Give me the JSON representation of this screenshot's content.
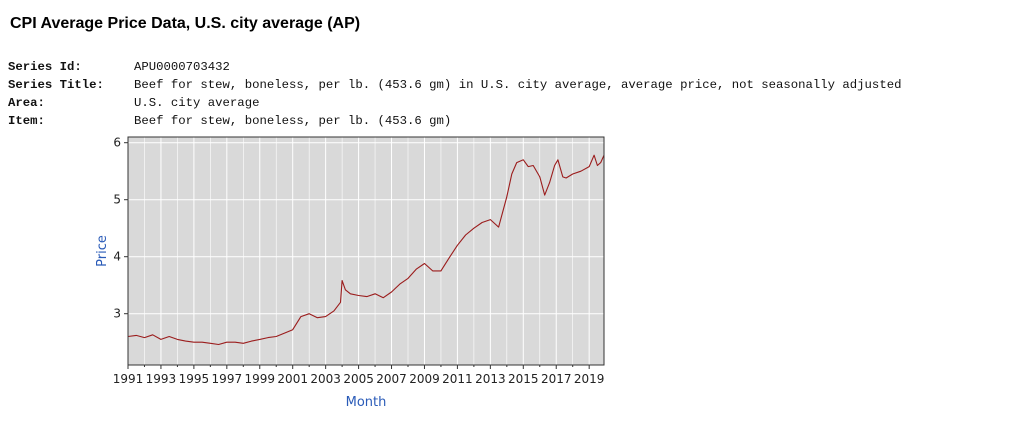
{
  "page": {
    "title": "CPI Average Price Data, U.S. city average (AP)"
  },
  "meta": [
    {
      "label": "Series Id:",
      "value": "APU0000703432"
    },
    {
      "label": "Series Title:",
      "value": "Beef for stew, boneless, per lb. (453.6 gm) in U.S. city average, average price, not seasonally adjusted"
    },
    {
      "label": "Area:",
      "value": "U.S. city average"
    },
    {
      "label": "Item:",
      "value": "Beef for stew, boneless, per lb. (453.6 gm)"
    }
  ],
  "colors": {
    "line": "#9b1c1c",
    "plot_background": "#d9d9d9",
    "grid": "#ffffff",
    "axis_title": "#2a5bb8"
  },
  "chart_data": {
    "type": "line",
    "title": "",
    "xlabel": "Month",
    "ylabel": "Price",
    "xlim": [
      1991.0,
      2019.9
    ],
    "ylim": [
      2.1,
      6.1
    ],
    "grid": true,
    "x_ticks": [
      "1991",
      "1993",
      "1995",
      "1997",
      "1999",
      "2001",
      "2003",
      "2005",
      "2007",
      "2009",
      "2011",
      "2013",
      "2015",
      "2017",
      "2019"
    ],
    "y_ticks": [
      "3",
      "4",
      "5",
      "6"
    ],
    "series": [
      {
        "name": "",
        "x": [
          1991.0,
          1991.5,
          1992.0,
          1992.5,
          1993.0,
          1993.5,
          1994.0,
          1994.5,
          1995.0,
          1995.5,
          1996.0,
          1996.5,
          1997.0,
          1997.5,
          1998.0,
          1998.5,
          1999.0,
          1999.5,
          2000.0,
          2000.5,
          2001.0,
          2001.5,
          2002.0,
          2002.5,
          2003.0,
          2003.5,
          2003.9,
          2004.0,
          2004.2,
          2004.5,
          2005.0,
          2005.5,
          2006.0,
          2006.5,
          2007.0,
          2007.5,
          2008.0,
          2008.5,
          2009.0,
          2009.5,
          2010.0,
          2010.5,
          2011.0,
          2011.5,
          2012.0,
          2012.5,
          2013.0,
          2013.5,
          2014.0,
          2014.3,
          2014.6,
          2015.0,
          2015.3,
          2015.6,
          2016.0,
          2016.3,
          2016.6,
          2016.9,
          2017.1,
          2017.4,
          2017.6,
          2018.0,
          2018.5,
          2019.0,
          2019.3,
          2019.5,
          2019.7,
          2019.9
        ],
        "y": [
          2.6,
          2.62,
          2.58,
          2.63,
          2.55,
          2.6,
          2.55,
          2.52,
          2.5,
          2.5,
          2.48,
          2.46,
          2.5,
          2.5,
          2.48,
          2.52,
          2.55,
          2.58,
          2.6,
          2.66,
          2.72,
          2.95,
          3.0,
          2.93,
          2.95,
          3.05,
          3.2,
          3.58,
          3.42,
          3.35,
          3.32,
          3.3,
          3.35,
          3.28,
          3.38,
          3.52,
          3.62,
          3.78,
          3.88,
          3.75,
          3.75,
          3.98,
          4.2,
          4.38,
          4.5,
          4.6,
          4.65,
          4.52,
          5.05,
          5.45,
          5.65,
          5.7,
          5.58,
          5.6,
          5.4,
          5.08,
          5.3,
          5.6,
          5.7,
          5.4,
          5.38,
          5.45,
          5.5,
          5.58,
          5.78,
          5.6,
          5.65,
          5.78
        ]
      }
    ]
  }
}
